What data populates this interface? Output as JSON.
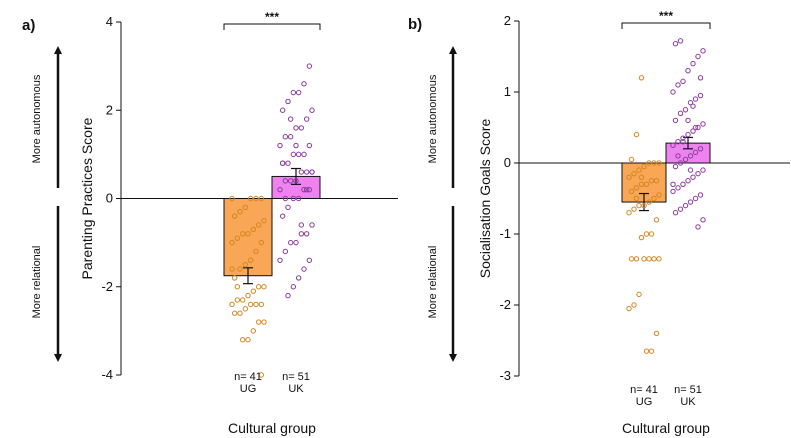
{
  "colors": {
    "ug_fill": "#F9A656",
    "ug_point": "#D4861F",
    "uk_fill": "#EE82EE",
    "uk_point": "#8B3A9F",
    "ink": "#111111"
  },
  "chart_data": [
    {
      "type": "bar",
      "panel_label": "a)",
      "title": "",
      "ylabel": "Parenting Practices Score",
      "xlabel": "Cultural group",
      "ylim": [
        -4,
        4
      ],
      "yticks": [
        -4,
        -2,
        0,
        2,
        4
      ],
      "side_labels": {
        "upper": "More autonomous",
        "lower": "More relational"
      },
      "significance": "***",
      "categories": [
        "UG",
        "UK"
      ],
      "n_labels": [
        "n= 41",
        "n= 51"
      ],
      "values": [
        -1.75,
        0.5
      ],
      "errors": [
        0.18,
        0.18
      ],
      "points": [
        [
          0.0,
          0.0,
          0.0,
          0.0,
          -0.2,
          -0.3,
          -0.4,
          -0.5,
          -0.6,
          -0.7,
          -0.8,
          -0.8,
          -0.9,
          -1.0,
          -1.0,
          -1.2,
          -1.4,
          -1.5,
          -1.6,
          -1.8,
          -2.0,
          -2.0,
          -2.1,
          -2.2,
          -2.3,
          -2.3,
          -2.4,
          -2.4,
          -2.4,
          -2.4,
          -2.5,
          -2.6,
          -2.6,
          -2.8,
          -2.8,
          -3.0,
          -3.2,
          -3.2,
          -2.0,
          -1.6,
          -4.0
        ],
        [
          3.0,
          2.6,
          2.4,
          2.4,
          2.2,
          2.0,
          2.0,
          1.8,
          1.6,
          1.6,
          1.4,
          1.4,
          1.2,
          1.2,
          1.0,
          1.0,
          1.0,
          0.8,
          0.8,
          0.6,
          0.6,
          0.6,
          0.4,
          0.4,
          0.4,
          0.2,
          0.2,
          0.2,
          0.0,
          0.0,
          -0.2,
          -0.4,
          -0.6,
          -0.8,
          -0.8,
          -1.0,
          -1.0,
          -1.2,
          -1.4,
          -1.4,
          -1.6,
          -1.8,
          -2.0,
          -2.2,
          0.8,
          0.6,
          0.2,
          -0.6,
          1.2,
          1.8,
          0.0
        ]
      ]
    },
    {
      "type": "bar",
      "panel_label": "b)",
      "title": "",
      "ylabel": "Socialisation Goals Score",
      "xlabel": "Cultural group",
      "ylim": [
        -3,
        2
      ],
      "yticks": [
        -3,
        -2,
        -1,
        0,
        1,
        2
      ],
      "side_labels": {
        "upper": "More autonomous",
        "lower": "More relational"
      },
      "significance": "***",
      "categories": [
        "UG",
        "UK"
      ],
      "n_labels": [
        "n= 41",
        "n= 51"
      ],
      "values": [
        -0.55,
        0.28
      ],
      "errors": [
        0.12,
        0.08
      ],
      "points": [
        [
          1.2,
          0.4,
          0.05,
          0.0,
          0.0,
          0.0,
          -0.05,
          -0.1,
          -0.15,
          -0.2,
          -0.25,
          -0.25,
          -0.3,
          -0.3,
          -0.35,
          -0.4,
          -0.45,
          -0.5,
          -0.55,
          -0.6,
          -0.6,
          -0.65,
          -0.7,
          -0.8,
          -1.0,
          -1.0,
          -1.05,
          -1.35,
          -1.35,
          -1.35,
          -1.35,
          -1.35,
          -1.35,
          -1.85,
          -2.0,
          -2.05,
          -2.4,
          -2.65,
          -2.65,
          -0.2,
          -0.5
        ],
        [
          1.72,
          1.68,
          1.58,
          1.5,
          1.4,
          1.3,
          1.15,
          1.1,
          1.0,
          0.95,
          0.9,
          0.85,
          0.75,
          0.7,
          0.6,
          0.55,
          0.5,
          0.45,
          0.4,
          0.35,
          0.3,
          0.25,
          0.2,
          0.15,
          0.1,
          0.05,
          0.0,
          -0.05,
          -0.1,
          -0.15,
          -0.2,
          -0.25,
          -0.3,
          -0.35,
          -0.4,
          -0.45,
          -0.5,
          -0.55,
          -0.6,
          -0.65,
          -0.7,
          -0.8,
          -0.9,
          0.8,
          0.6,
          0.3,
          0.1,
          -0.3,
          1.2,
          0.5,
          -0.1
        ]
      ]
    }
  ]
}
